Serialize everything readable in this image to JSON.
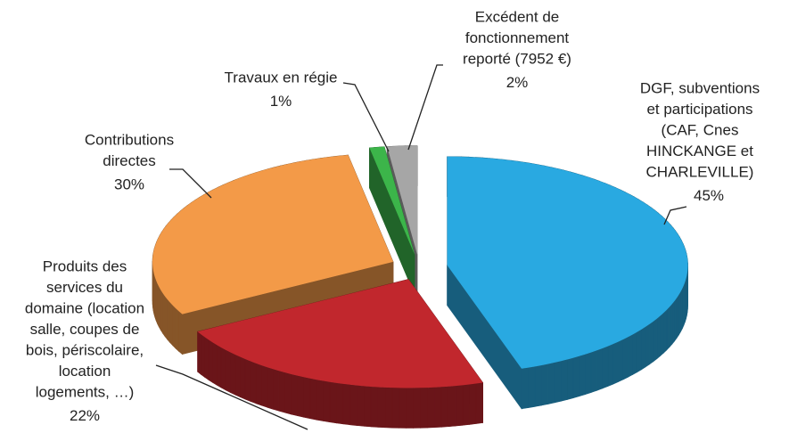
{
  "chart_data": {
    "type": "pie",
    "categories": [
      [
        "DGF, subventions",
        "et participations",
        "(CAF, Cnes",
        "HINCKANGE et",
        "CHARLEVILLE)"
      ],
      [
        "Produits des",
        "services du",
        "domaine (location",
        "salle, coupes de",
        "bois, périscolaire,",
        "location",
        "logements, …)"
      ],
      [
        "Contributions",
        "directes"
      ],
      [
        "Travaux en régie"
      ],
      [
        "Excédent de",
        "fonctionnement",
        "reporté (7952 €)"
      ]
    ],
    "values": [
      45,
      22,
      30,
      1,
      2
    ],
    "value_labels": [
      "45%",
      "22%",
      "30%",
      "1%",
      "2%"
    ],
    "colors": [
      "#29a9e1",
      "#c1272d",
      "#f39a48",
      "#3cb54a",
      "#a6a6a6"
    ]
  }
}
